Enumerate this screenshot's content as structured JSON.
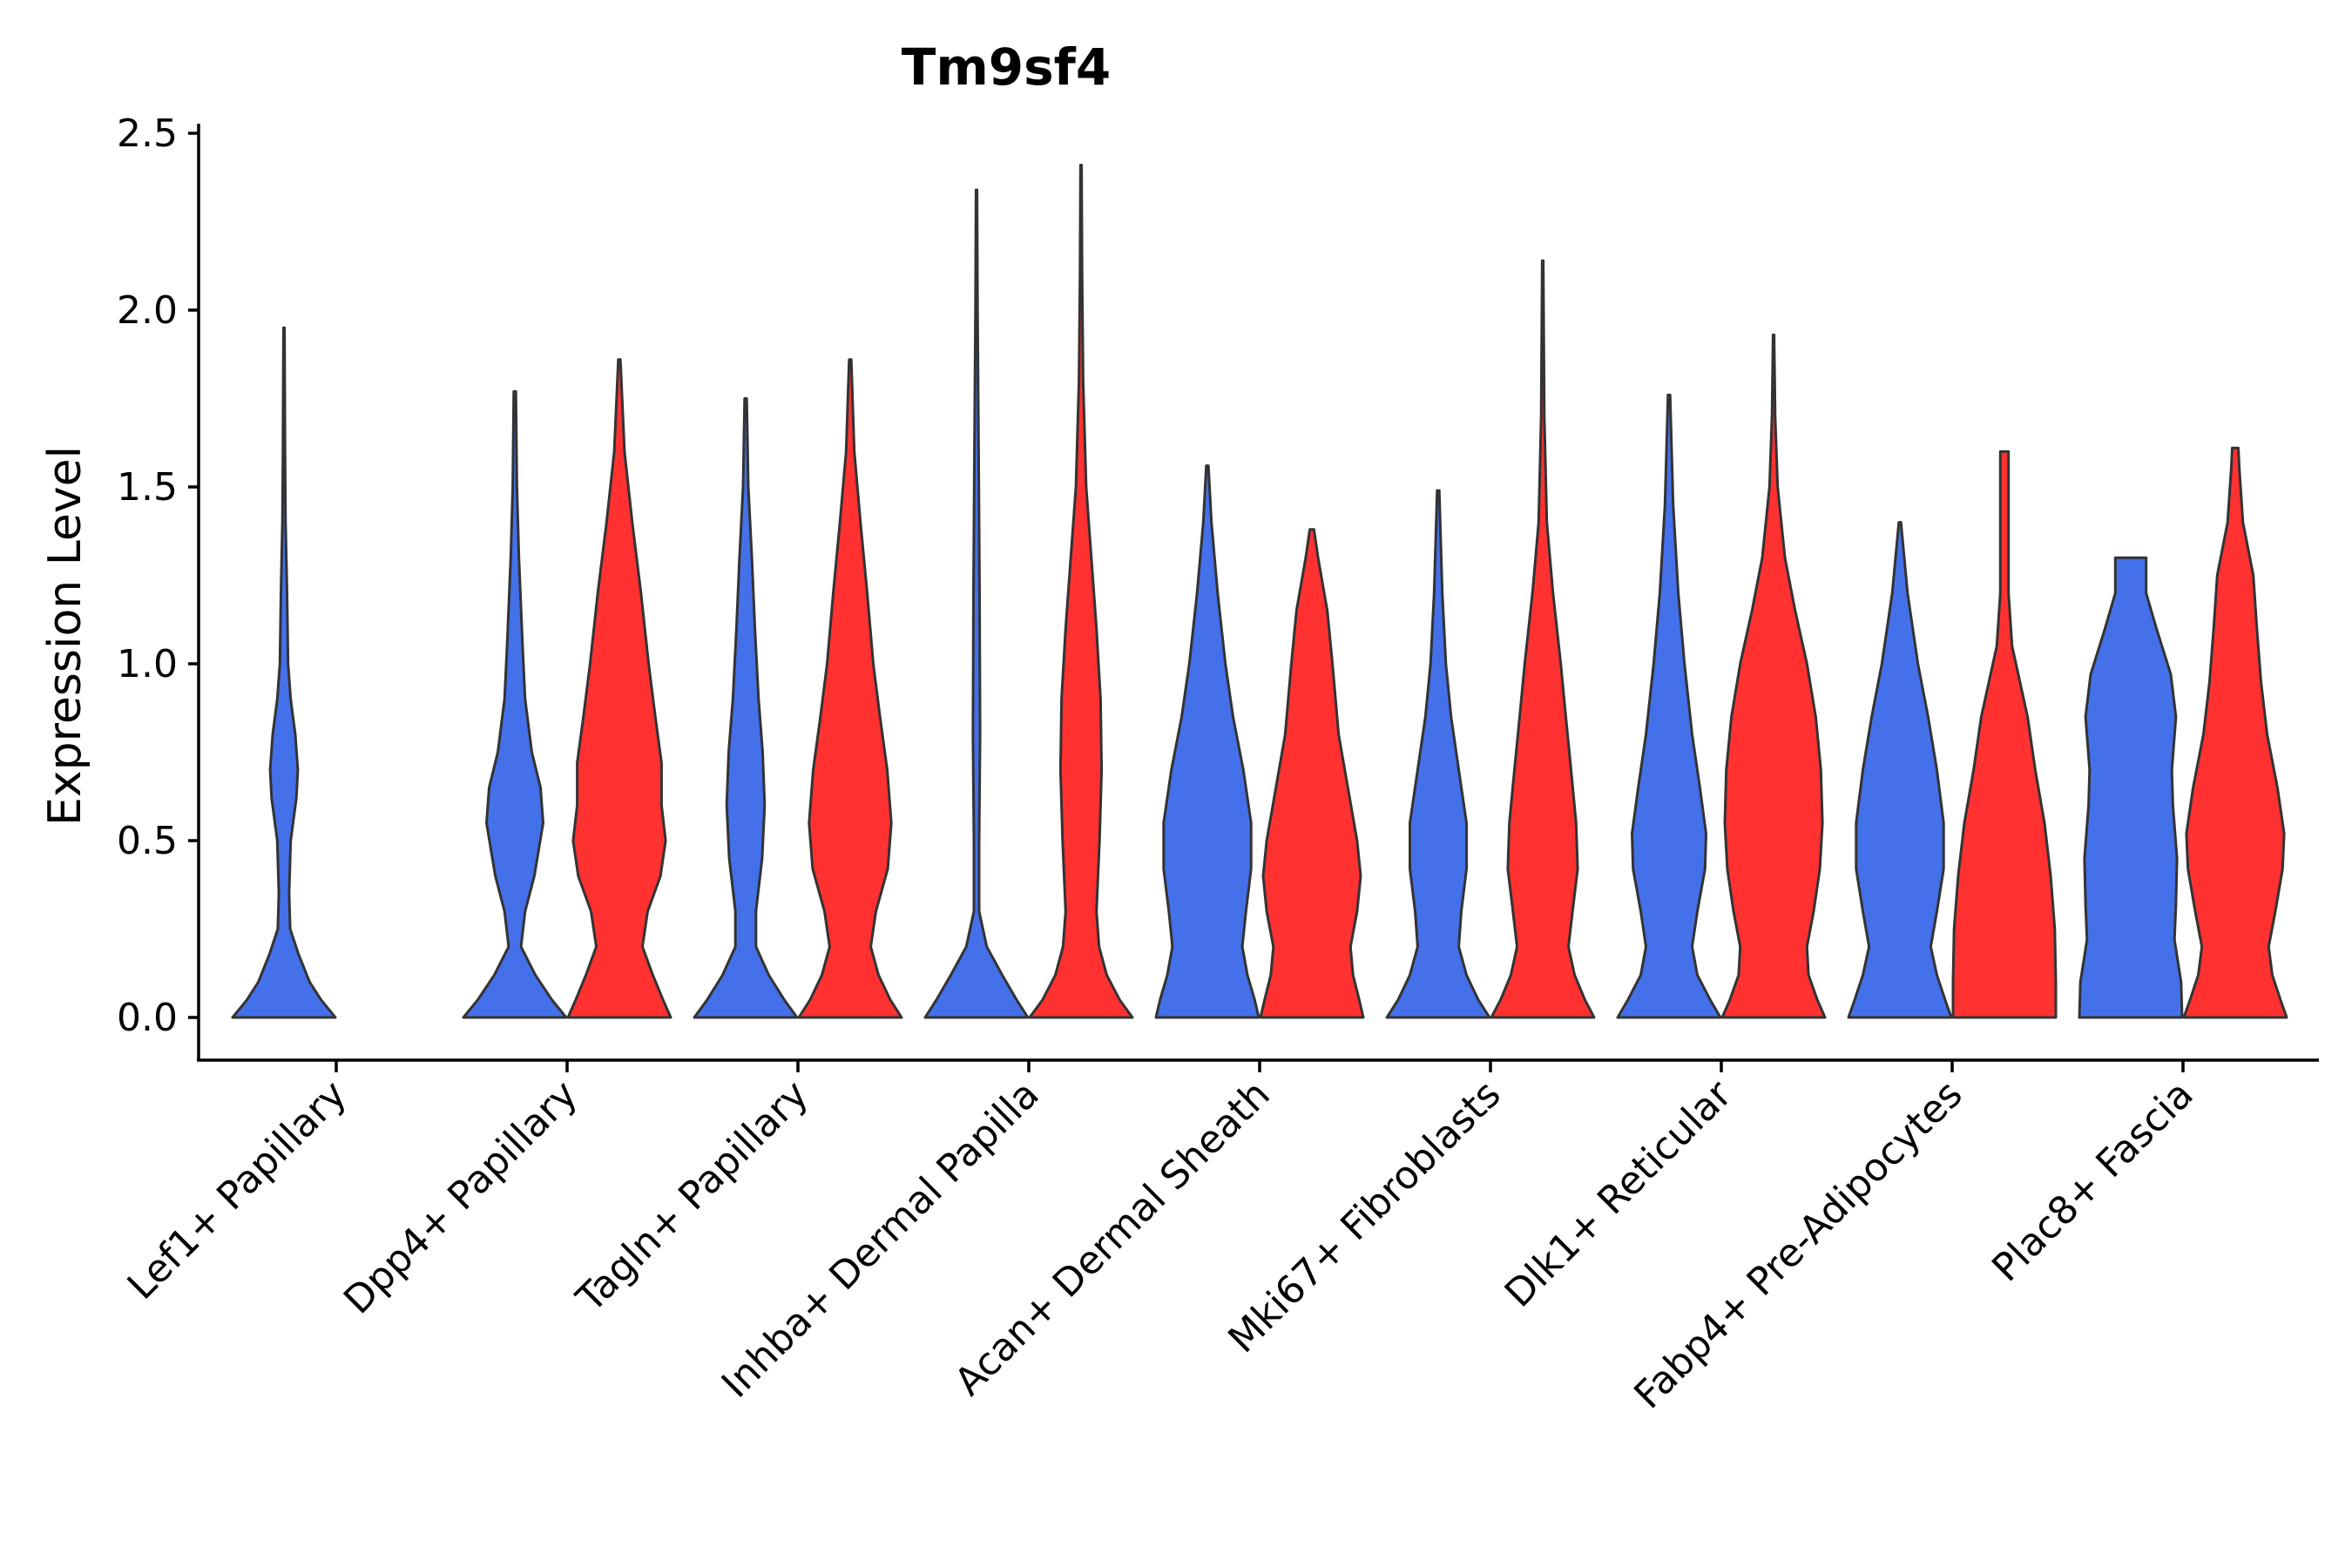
{
  "chart_data": {
    "type": "violin",
    "title": "Tm9sf4",
    "xlabel": "",
    "ylabel": "Expression Level",
    "ylim": [
      -0.12,
      2.55
    ],
    "yticks": [
      0.0,
      0.5,
      1.0,
      1.5,
      2.0,
      2.5
    ],
    "ytick_labels": [
      "0.0",
      "0.5",
      "1.0",
      "1.5",
      "2.0",
      "2.5"
    ],
    "grid": false,
    "colors": {
      "blue": "#4470EA",
      "red": "#FF3131"
    },
    "categories": [
      "Lef1+ Papillary",
      "Dpp4+ Papillary",
      "Tagln+ Papillary",
      "Inhba+ Dermal Papilla",
      "Acan+ Dermal Sheath",
      "Mki67+ Fibroblasts",
      "Dlk1+ Reticular",
      "Fabp4+ Pre-Adipocytes",
      "Plac8+ Fascia"
    ],
    "violins": [
      {
        "category": 0,
        "group": "blue",
        "max": 1.95,
        "profile": [
          [
            0,
            1.0
          ],
          [
            0.05,
            0.72
          ],
          [
            0.1,
            0.5
          ],
          [
            0.18,
            0.28
          ],
          [
            0.25,
            0.12
          ],
          [
            0.35,
            0.1
          ],
          [
            0.5,
            0.13
          ],
          [
            0.62,
            0.24
          ],
          [
            0.7,
            0.27
          ],
          [
            0.8,
            0.22
          ],
          [
            0.9,
            0.13
          ],
          [
            1.0,
            0.08
          ],
          [
            1.2,
            0.06
          ],
          [
            1.4,
            0.03
          ],
          [
            1.6,
            0.02
          ],
          [
            1.95,
            0.01
          ]
        ]
      },
      {
        "category": 1,
        "group": "blue",
        "max": 1.77,
        "profile": [
          [
            0,
            1.0
          ],
          [
            0.05,
            0.72
          ],
          [
            0.12,
            0.4
          ],
          [
            0.2,
            0.12
          ],
          [
            0.3,
            0.2
          ],
          [
            0.4,
            0.38
          ],
          [
            0.55,
            0.55
          ],
          [
            0.65,
            0.5
          ],
          [
            0.75,
            0.33
          ],
          [
            0.9,
            0.2
          ],
          [
            1.05,
            0.15
          ],
          [
            1.3,
            0.08
          ],
          [
            1.5,
            0.04
          ],
          [
            1.77,
            0.02
          ]
        ]
      },
      {
        "category": 1,
        "group": "red",
        "max": 1.86,
        "profile": [
          [
            0,
            1.0
          ],
          [
            0.05,
            0.85
          ],
          [
            0.12,
            0.65
          ],
          [
            0.2,
            0.45
          ],
          [
            0.3,
            0.55
          ],
          [
            0.4,
            0.8
          ],
          [
            0.5,
            0.9
          ],
          [
            0.6,
            0.82
          ],
          [
            0.72,
            0.82
          ],
          [
            0.85,
            0.7
          ],
          [
            1.0,
            0.57
          ],
          [
            1.2,
            0.42
          ],
          [
            1.4,
            0.25
          ],
          [
            1.6,
            0.1
          ],
          [
            1.86,
            0.02
          ]
        ]
      },
      {
        "category": 2,
        "group": "blue",
        "max": 1.75,
        "profile": [
          [
            0,
            1.0
          ],
          [
            0.05,
            0.75
          ],
          [
            0.12,
            0.45
          ],
          [
            0.2,
            0.2
          ],
          [
            0.3,
            0.2
          ],
          [
            0.45,
            0.32
          ],
          [
            0.6,
            0.37
          ],
          [
            0.75,
            0.33
          ],
          [
            0.9,
            0.25
          ],
          [
            1.1,
            0.18
          ],
          [
            1.3,
            0.12
          ],
          [
            1.5,
            0.05
          ],
          [
            1.75,
            0.02
          ]
        ]
      },
      {
        "category": 2,
        "group": "red",
        "max": 1.86,
        "profile": [
          [
            0,
            1.0
          ],
          [
            0.05,
            0.78
          ],
          [
            0.12,
            0.55
          ],
          [
            0.2,
            0.4
          ],
          [
            0.3,
            0.5
          ],
          [
            0.42,
            0.73
          ],
          [
            0.55,
            0.8
          ],
          [
            0.7,
            0.72
          ],
          [
            0.85,
            0.58
          ],
          [
            1.0,
            0.45
          ],
          [
            1.2,
            0.33
          ],
          [
            1.4,
            0.2
          ],
          [
            1.6,
            0.08
          ],
          [
            1.86,
            0.02
          ]
        ]
      },
      {
        "category": 3,
        "group": "blue",
        "max": 2.34,
        "profile": [
          [
            0,
            1.0
          ],
          [
            0.05,
            0.78
          ],
          [
            0.12,
            0.5
          ],
          [
            0.2,
            0.2
          ],
          [
            0.3,
            0.05
          ],
          [
            0.5,
            0.05
          ],
          [
            0.8,
            0.07
          ],
          [
            1.2,
            0.06
          ],
          [
            1.6,
            0.04
          ],
          [
            2.0,
            0.02
          ],
          [
            2.34,
            0.01
          ]
        ]
      },
      {
        "category": 3,
        "group": "red",
        "max": 2.41,
        "profile": [
          [
            0,
            1.0
          ],
          [
            0.05,
            0.75
          ],
          [
            0.12,
            0.5
          ],
          [
            0.2,
            0.35
          ],
          [
            0.3,
            0.3
          ],
          [
            0.5,
            0.36
          ],
          [
            0.7,
            0.4
          ],
          [
            0.9,
            0.38
          ],
          [
            1.1,
            0.3
          ],
          [
            1.3,
            0.2
          ],
          [
            1.5,
            0.1
          ],
          [
            1.8,
            0.04
          ],
          [
            2.1,
            0.02
          ],
          [
            2.41,
            0.01
          ]
        ]
      },
      {
        "category": 4,
        "group": "blue",
        "max": 1.56,
        "profile": [
          [
            0,
            1.0
          ],
          [
            0.05,
            0.92
          ],
          [
            0.12,
            0.78
          ],
          [
            0.2,
            0.68
          ],
          [
            0.3,
            0.75
          ],
          [
            0.42,
            0.85
          ],
          [
            0.55,
            0.85
          ],
          [
            0.7,
            0.7
          ],
          [
            0.85,
            0.5
          ],
          [
            1.0,
            0.35
          ],
          [
            1.2,
            0.2
          ],
          [
            1.4,
            0.08
          ],
          [
            1.56,
            0.02
          ]
        ]
      },
      {
        "category": 4,
        "group": "red",
        "max": 1.38,
        "profile": [
          [
            0,
            1.0
          ],
          [
            0.05,
            0.92
          ],
          [
            0.12,
            0.8
          ],
          [
            0.2,
            0.75
          ],
          [
            0.3,
            0.88
          ],
          [
            0.4,
            0.95
          ],
          [
            0.5,
            0.88
          ],
          [
            0.65,
            0.7
          ],
          [
            0.8,
            0.52
          ],
          [
            1.0,
            0.4
          ],
          [
            1.15,
            0.3
          ],
          [
            1.3,
            0.12
          ],
          [
            1.38,
            0.04
          ]
        ]
      },
      {
        "category": 5,
        "group": "blue",
        "max": 1.49,
        "profile": [
          [
            0,
            1.0
          ],
          [
            0.05,
            0.78
          ],
          [
            0.12,
            0.55
          ],
          [
            0.2,
            0.4
          ],
          [
            0.3,
            0.45
          ],
          [
            0.42,
            0.55
          ],
          [
            0.55,
            0.55
          ],
          [
            0.7,
            0.4
          ],
          [
            0.85,
            0.25
          ],
          [
            1.0,
            0.15
          ],
          [
            1.2,
            0.08
          ],
          [
            1.49,
            0.02
          ]
        ]
      },
      {
        "category": 5,
        "group": "red",
        "max": 2.14,
        "profile": [
          [
            0,
            1.0
          ],
          [
            0.05,
            0.82
          ],
          [
            0.12,
            0.62
          ],
          [
            0.2,
            0.5
          ],
          [
            0.3,
            0.58
          ],
          [
            0.42,
            0.68
          ],
          [
            0.55,
            0.65
          ],
          [
            0.7,
            0.55
          ],
          [
            0.85,
            0.45
          ],
          [
            1.0,
            0.35
          ],
          [
            1.2,
            0.2
          ],
          [
            1.4,
            0.08
          ],
          [
            1.7,
            0.03
          ],
          [
            2.14,
            0.01
          ]
        ]
      },
      {
        "category": 6,
        "group": "blue",
        "max": 1.76,
        "profile": [
          [
            0,
            1.0
          ],
          [
            0.05,
            0.8
          ],
          [
            0.12,
            0.55
          ],
          [
            0.2,
            0.45
          ],
          [
            0.3,
            0.55
          ],
          [
            0.42,
            0.7
          ],
          [
            0.52,
            0.72
          ],
          [
            0.65,
            0.6
          ],
          [
            0.8,
            0.45
          ],
          [
            1.0,
            0.3
          ],
          [
            1.2,
            0.18
          ],
          [
            1.45,
            0.08
          ],
          [
            1.76,
            0.02
          ]
        ]
      },
      {
        "category": 6,
        "group": "red",
        "max": 1.93,
        "profile": [
          [
            0,
            1.0
          ],
          [
            0.05,
            0.85
          ],
          [
            0.12,
            0.68
          ],
          [
            0.2,
            0.65
          ],
          [
            0.3,
            0.78
          ],
          [
            0.42,
            0.9
          ],
          [
            0.55,
            0.95
          ],
          [
            0.7,
            0.92
          ],
          [
            0.85,
            0.82
          ],
          [
            1.0,
            0.65
          ],
          [
            1.15,
            0.42
          ],
          [
            1.3,
            0.22
          ],
          [
            1.5,
            0.08
          ],
          [
            1.7,
            0.03
          ],
          [
            1.93,
            0.01
          ]
        ]
      },
      {
        "category": 7,
        "group": "blue",
        "max": 1.4,
        "profile": [
          [
            0,
            1.0
          ],
          [
            0.05,
            0.88
          ],
          [
            0.12,
            0.72
          ],
          [
            0.2,
            0.6
          ],
          [
            0.3,
            0.72
          ],
          [
            0.42,
            0.85
          ],
          [
            0.55,
            0.85
          ],
          [
            0.7,
            0.72
          ],
          [
            0.85,
            0.55
          ],
          [
            1.0,
            0.35
          ],
          [
            1.2,
            0.15
          ],
          [
            1.4,
            0.02
          ]
        ]
      },
      {
        "category": 7,
        "group": "red",
        "max": 1.6,
        "profile": [
          [
            0,
            1.0
          ],
          [
            0.1,
            1.0
          ],
          [
            0.25,
            0.98
          ],
          [
            0.4,
            0.9
          ],
          [
            0.55,
            0.78
          ],
          [
            0.7,
            0.6
          ],
          [
            0.85,
            0.45
          ],
          [
            0.95,
            0.3
          ],
          [
            1.05,
            0.15
          ],
          [
            1.2,
            0.08
          ],
          [
            1.4,
            0.08
          ],
          [
            1.55,
            0.08
          ],
          [
            1.6,
            0.08
          ]
        ]
      },
      {
        "category": 8,
        "group": "blue",
        "max": 1.3,
        "profile": [
          [
            0,
            1.0
          ],
          [
            0.1,
            0.98
          ],
          [
            0.22,
            0.85
          ],
          [
            0.32,
            0.88
          ],
          [
            0.45,
            0.9
          ],
          [
            0.6,
            0.82
          ],
          [
            0.7,
            0.8
          ],
          [
            0.85,
            0.88
          ],
          [
            0.97,
            0.78
          ],
          [
            1.1,
            0.5
          ],
          [
            1.2,
            0.3
          ],
          [
            1.3,
            0.3
          ]
        ]
      },
      {
        "category": 8,
        "group": "red",
        "max": 1.61,
        "profile": [
          [
            0,
            1.0
          ],
          [
            0.05,
            0.88
          ],
          [
            0.12,
            0.72
          ],
          [
            0.2,
            0.65
          ],
          [
            0.3,
            0.78
          ],
          [
            0.42,
            0.92
          ],
          [
            0.52,
            0.95
          ],
          [
            0.65,
            0.82
          ],
          [
            0.8,
            0.62
          ],
          [
            0.95,
            0.5
          ],
          [
            1.1,
            0.42
          ],
          [
            1.25,
            0.35
          ],
          [
            1.4,
            0.15
          ],
          [
            1.55,
            0.08
          ],
          [
            1.61,
            0.06
          ]
        ]
      }
    ]
  }
}
